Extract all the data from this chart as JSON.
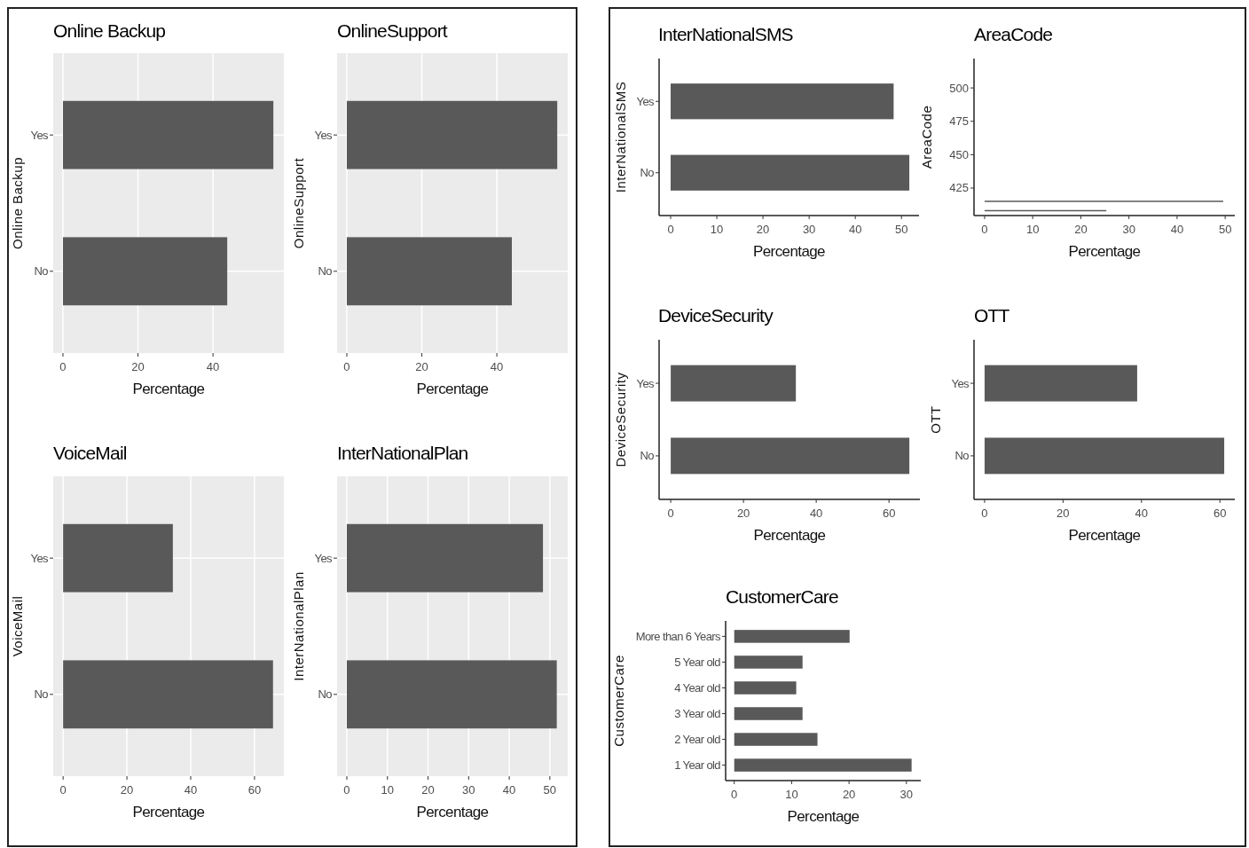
{
  "chart_data": [
    {
      "type": "bar",
      "orientation": "horizontal",
      "title": "Online Backup",
      "xlabel": "Percentage",
      "ylabel": "Online Backup",
      "categories": [
        "Yes",
        "No"
      ],
      "values": [
        56.1,
        43.8
      ],
      "color": "#595959",
      "xlim": [
        -2.6,
        58.9
      ],
      "xticks": [
        0,
        20,
        40
      ],
      "grid": true
    },
    {
      "type": "bar",
      "orientation": "horizontal",
      "title": "OnlineSupport",
      "xlabel": "Percentage",
      "ylabel": "OnlineSupport",
      "categories": [
        "Yes",
        "No"
      ],
      "values": [
        56.1,
        44.0
      ],
      "color": "#595959",
      "xlim": [
        -2.6,
        58.9
      ],
      "xticks": [
        0,
        20,
        40
      ],
      "grid": true
    },
    {
      "type": "bar",
      "orientation": "horizontal",
      "title": "VoiceMail",
      "xlabel": "Percentage",
      "ylabel": "VoiceMail",
      "categories": [
        "Yes",
        "No"
      ],
      "values": [
        34.4,
        65.8
      ],
      "color": "#595959",
      "xlim": [
        -3.1,
        69.2
      ],
      "xticks": [
        0,
        20,
        40,
        60
      ],
      "grid": true
    },
    {
      "type": "bar",
      "orientation": "horizontal",
      "title": "InterNationalPlan",
      "xlabel": "Percentage",
      "ylabel": "InterNationalPlan",
      "categories": [
        "Yes",
        "No"
      ],
      "values": [
        48.3,
        51.7
      ],
      "color": "#595959",
      "xlim": [
        -2.4,
        54.4
      ],
      "xticks": [
        0,
        10,
        20,
        30,
        40,
        50
      ],
      "grid": true
    },
    {
      "type": "bar",
      "orientation": "horizontal",
      "title": "InterNationalSMS",
      "xlabel": "Percentage",
      "ylabel": "InterNationalSMS",
      "categories": [
        "Yes",
        "No"
      ],
      "values": [
        48.3,
        51.7
      ],
      "color": "#595959",
      "xlim": [
        -2.5,
        53.8
      ],
      "xticks": [
        0,
        10,
        20,
        30,
        40,
        50
      ]
    },
    {
      "type": "line",
      "title": "AreaCode",
      "xlabel": "Percentage",
      "ylabel": "AreaCode",
      "marker": "none",
      "xlim": [
        -2.2,
        52.0
      ],
      "xticks": [
        0,
        10,
        20,
        30,
        40,
        50
      ],
      "ylim": [
        404.4,
        522
      ],
      "yticks": [
        425,
        450,
        475,
        500
      ],
      "series": [
        {
          "color": "#595959",
          "x": [
            0,
            49.6
          ],
          "values": [
            415,
            415
          ]
        },
        {
          "color": "#595959",
          "x": [
            0,
            25.3
          ],
          "values": [
            408,
            408
          ]
        }
      ]
    },
    {
      "type": "bar",
      "orientation": "horizontal",
      "title": "DeviceSecurity",
      "xlabel": "Percentage",
      "ylabel": "DeviceSecurity",
      "categories": [
        "Yes",
        "No"
      ],
      "values": [
        34.4,
        65.6
      ],
      "color": "#595959",
      "xlim": [
        -3.2,
        68.5
      ],
      "xticks": [
        0,
        20,
        40,
        60
      ]
    },
    {
      "type": "bar",
      "orientation": "horizontal",
      "title": "OTT",
      "xlabel": "Percentage",
      "ylabel": "OTT",
      "categories": [
        "Yes",
        "No"
      ],
      "values": [
        38.9,
        61.1
      ],
      "color": "#595959",
      "xlim": [
        -2.7,
        63.8
      ],
      "xticks": [
        0,
        20,
        40,
        60
      ]
    },
    {
      "type": "bar",
      "orientation": "horizontal",
      "title": "CustomerCare",
      "xlabel": "Percentage",
      "ylabel": "CustomerCare",
      "categories": [
        "More than 6 Years",
        "5 Year old",
        "4 Year old",
        "3 Year old",
        "2 Year old",
        "1 Year old"
      ],
      "values": [
        20.1,
        11.9,
        10.8,
        11.9,
        14.5,
        30.9
      ],
      "color": "#595959",
      "xlim": [
        -1.5,
        32.5
      ],
      "xticks": [
        0,
        10,
        20,
        30
      ]
    }
  ]
}
